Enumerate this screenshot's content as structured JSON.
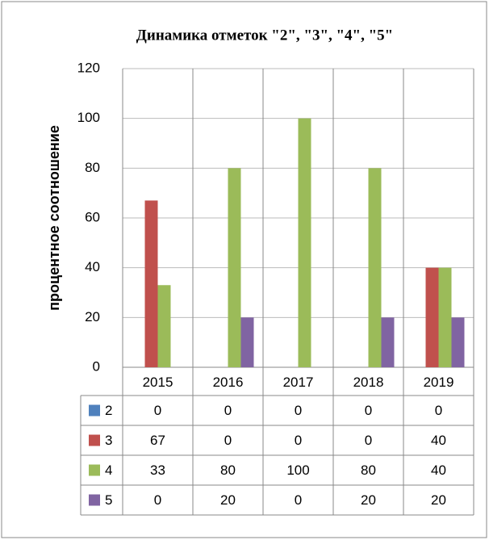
{
  "chart_data": {
    "type": "bar",
    "title": "Динамика отметок \"2\", \"3\", \"4\", \"5\"",
    "y_label": "процентное соотношение",
    "categories": [
      "2015",
      "2016",
      "2017",
      "2018",
      "2019"
    ],
    "series": [
      {
        "name": "2",
        "color": "#4f81bd",
        "values": [
          0,
          0,
          0,
          0,
          0
        ]
      },
      {
        "name": "3",
        "color": "#c0504d",
        "values": [
          67,
          0,
          0,
          0,
          40
        ]
      },
      {
        "name": "4",
        "color": "#9bbb59",
        "values": [
          33,
          80,
          100,
          80,
          40
        ]
      },
      {
        "name": "5",
        "color": "#8064a2",
        "values": [
          0,
          20,
          0,
          20,
          20
        ]
      }
    ],
    "ylim": [
      0,
      120
    ],
    "yticks": [
      0,
      20,
      40,
      60,
      80,
      100,
      120
    ],
    "grid": true
  }
}
